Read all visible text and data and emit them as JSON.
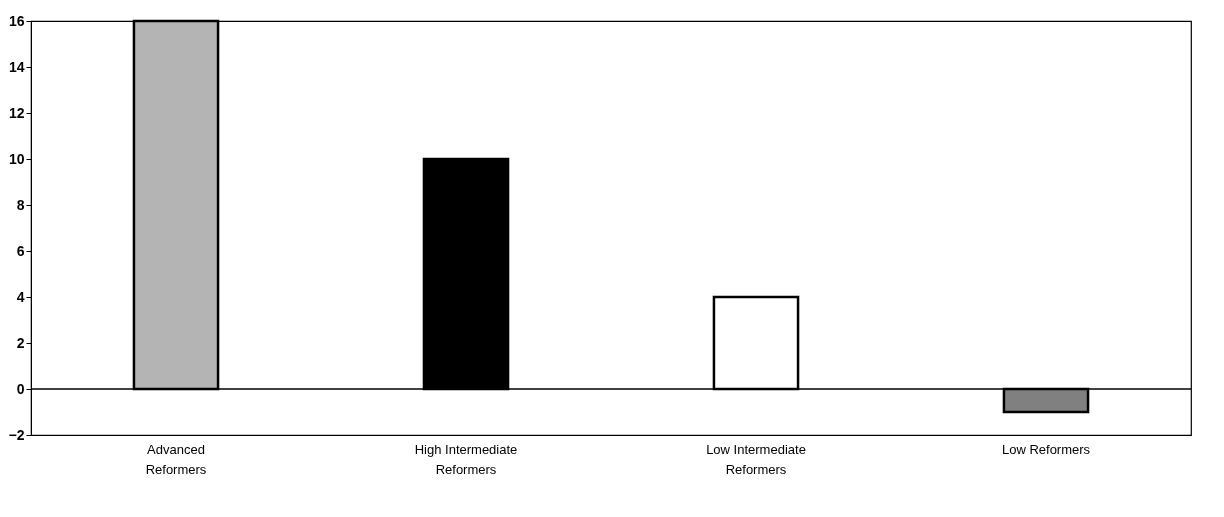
{
  "chart_data": {
    "type": "bar",
    "categories": [
      "Advanced Reformers",
      "High Intermediate Reformers",
      "Low Intermediate Reformers",
      "Low Reformers"
    ],
    "values": [
      16,
      10,
      4,
      -1
    ],
    "colors": [
      "#b4b4b4",
      "#000000",
      "#ffffff",
      "#808080"
    ],
    "ylim": [
      -2,
      16
    ],
    "yticks": [
      -2,
      0,
      2,
      4,
      6,
      8,
      10,
      12,
      14,
      16
    ],
    "ref_lines": [
      {
        "axis": "y",
        "value": 0
      }
    ],
    "grid": false
  }
}
